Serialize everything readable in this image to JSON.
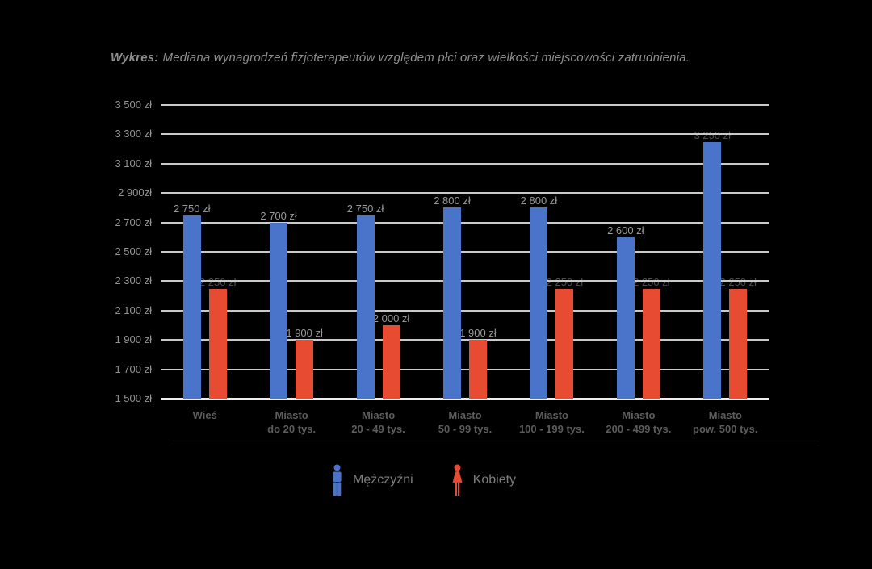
{
  "page": {
    "background": "#000000"
  },
  "title": {
    "prefix": "Wykres:",
    "text": "Mediana wynagrodzeń fizjoterapeutów względem płci oraz wielkości miejscowości zatrudnienia."
  },
  "chart_data": {
    "type": "bar",
    "title": "Mediana wynagrodzeń fizjoterapeutów względem płci oraz wielkości miejscowości zatrudnienia.",
    "categories": [
      "Wieś",
      "Miasto do 20 tys.",
      "Miasto 20 - 49 tys.",
      "Miasto 50 - 99 tys.",
      "Miasto 100 - 199 tys.",
      "Miasto 200 - 499 tys.",
      "Miasto pow. 500 tys."
    ],
    "categories_display_lines": [
      [
        "Wieś"
      ],
      [
        "Miasto",
        "do 20 tys."
      ],
      [
        "Miasto",
        "20 - 49 tys."
      ],
      [
        "Miasto",
        "50 - 99 tys."
      ],
      [
        "Miasto",
        "100 - 199 tys."
      ],
      [
        "Miasto",
        "200 - 499 tys."
      ],
      [
        "Miasto",
        "pow. 500 tys."
      ]
    ],
    "series": [
      {
        "name": "Mężczyźni",
        "color": "#4a74c9",
        "values": [
          2750,
          2700,
          2750,
          2800,
          2800,
          2600,
          3250
        ],
        "value_labels": [
          "2 750 zł",
          "2 700 zł",
          "2 750 zł",
          "2 800 zł",
          "2 800 zł",
          "2 600 zł",
          "3 250 zł"
        ]
      },
      {
        "name": "Kobiety",
        "color": "#e74b31",
        "values": [
          2250,
          1900,
          2000,
          1900,
          2250,
          2250,
          2250
        ],
        "value_labels": [
          "2 250 zł",
          "1 900 zł",
          "2 000 zł",
          "1 900 zł",
          "2 250 zł",
          "2 250 zł",
          "2 250 zł"
        ]
      }
    ],
    "y_axis": {
      "min": 1500,
      "max": 3500,
      "step": 200,
      "unit": "zł",
      "tick_labels_top_to_bottom": [
        "3 500 zł",
        "3 300 zł",
        "3 100 zł",
        "2 900zł",
        "2 700 zł",
        "2 500 zł",
        "2 300 zł",
        "2 100 zł",
        "1 900 zł",
        "1 700 zł",
        "1 500 zł"
      ]
    },
    "legend": {
      "position": "bottom",
      "items": [
        {
          "label": "Mężczyźni",
          "icon": "male-person-icon"
        },
        {
          "label": "Kobiety",
          "icon": "female-person-icon"
        }
      ]
    },
    "grid": "horizontal-only",
    "ylim": [
      1500,
      3500
    ]
  },
  "colors": {
    "background": "#000000",
    "men_bar": "#4a74c9",
    "women_bar": "#e74b31",
    "gridline": "#c9c9c9",
    "baseline": "#ededed",
    "title_text": "#8f8f8f",
    "y_tick_text": "#949494",
    "category_text": "#5d5d5d",
    "value_label_text": "#9a9a9a",
    "value_label_dim_text": "#4e4e4e",
    "legend_text": "#7d7d7d"
  }
}
